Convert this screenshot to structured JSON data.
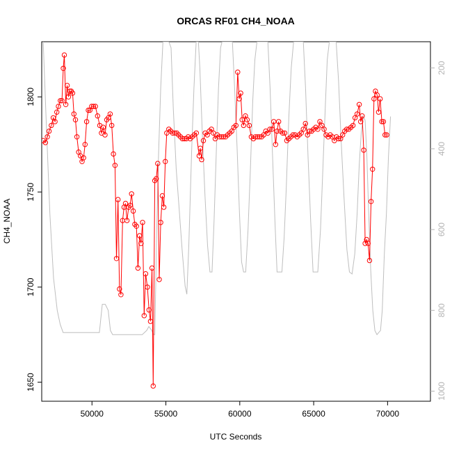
{
  "chart_data": {
    "type": "line",
    "title": "ORCAS RF01 CH4_NOAA",
    "xlabel": "UTC Seconds",
    "ylabel": "CH4_NOAA",
    "xlim": [
      46600,
      72900
    ],
    "ylim": [
      1640,
      1829
    ],
    "x_ticks": [
      50000,
      55000,
      60000,
      65000,
      70000
    ],
    "y_ticks": [
      1650,
      1700,
      1750,
      1800
    ],
    "y2_ticks": [
      200,
      400,
      600,
      800,
      1000
    ],
    "y2_lim": [
      1025,
      135
    ],
    "grid": false,
    "legend": "none",
    "colors": {
      "ch4": "#ff0000",
      "secondary": "#bebebe",
      "axis": "#000000",
      "right_axis": "#b3b3b3"
    },
    "series": [
      {
        "style": "line-points",
        "points": [
          [
            46700,
            1777
          ],
          [
            46850,
            1776
          ],
          [
            46980,
            1779
          ],
          [
            47100,
            1782
          ],
          [
            47250,
            1785
          ],
          [
            47380,
            1789
          ],
          [
            47500,
            1787
          ],
          [
            47620,
            1792
          ],
          [
            47730,
            1795
          ],
          [
            47860,
            1798
          ],
          [
            47970,
            1798
          ],
          [
            48060,
            1815
          ],
          [
            48130,
            1822
          ],
          [
            48230,
            1796
          ],
          [
            48320,
            1806
          ],
          [
            48410,
            1800
          ],
          [
            48500,
            1803
          ],
          [
            48600,
            1803
          ],
          [
            48690,
            1802
          ],
          [
            48780,
            1791
          ],
          [
            48880,
            1788
          ],
          [
            48980,
            1779
          ],
          [
            49100,
            1771
          ],
          [
            49220,
            1769
          ],
          [
            49330,
            1766
          ],
          [
            49430,
            1768
          ],
          [
            49530,
            1775
          ],
          [
            49640,
            1787
          ],
          [
            49750,
            1793
          ],
          [
            49860,
            1793
          ],
          [
            49980,
            1795
          ],
          [
            50100,
            1795
          ],
          [
            50230,
            1795
          ],
          [
            50380,
            1790
          ],
          [
            50530,
            1785
          ],
          [
            50640,
            1781
          ],
          [
            50760,
            1784
          ],
          [
            50880,
            1780
          ],
          [
            51000,
            1788
          ],
          [
            51110,
            1789
          ],
          [
            51230,
            1791
          ],
          [
            51340,
            1785
          ],
          [
            51450,
            1770
          ],
          [
            51560,
            1764
          ],
          [
            51660,
            1715
          ],
          [
            51760,
            1746
          ],
          [
            51860,
            1699
          ],
          [
            51960,
            1696
          ],
          [
            52070,
            1735
          ],
          [
            52170,
            1742
          ],
          [
            52270,
            1744
          ],
          [
            52370,
            1735
          ],
          [
            52480,
            1742
          ],
          [
            52580,
            1743
          ],
          [
            52680,
            1749
          ],
          [
            52790,
            1740
          ],
          [
            52900,
            1733
          ],
          [
            53010,
            1732
          ],
          [
            53110,
            1710
          ],
          [
            53220,
            1727
          ],
          [
            53320,
            1723
          ],
          [
            53420,
            1734
          ],
          [
            53530,
            1685
          ],
          [
            53630,
            1707
          ],
          [
            53750,
            1700
          ],
          [
            53860,
            1688
          ],
          [
            53960,
            1682
          ],
          [
            54060,
            1710
          ],
          [
            54140,
            1648
          ],
          [
            54250,
            1756
          ],
          [
            54350,
            1757
          ],
          [
            54450,
            1765
          ],
          [
            54550,
            1704
          ],
          [
            54650,
            1734
          ],
          [
            54760,
            1748
          ],
          [
            54860,
            1742
          ],
          [
            54960,
            1766
          ],
          [
            55060,
            1781
          ],
          [
            55200,
            1783
          ],
          [
            55330,
            1782
          ],
          [
            55460,
            1781
          ],
          [
            55600,
            1781
          ],
          [
            55730,
            1781
          ],
          [
            55860,
            1780
          ],
          [
            55990,
            1779
          ],
          [
            56120,
            1778
          ],
          [
            56250,
            1778
          ],
          [
            56380,
            1778
          ],
          [
            56510,
            1779
          ],
          [
            56640,
            1778
          ],
          [
            56780,
            1779
          ],
          [
            56920,
            1780
          ],
          [
            57060,
            1781
          ],
          [
            57250,
            1769
          ],
          [
            57330,
            1773
          ],
          [
            57420,
            1767
          ],
          [
            57540,
            1777
          ],
          [
            57660,
            1781
          ],
          [
            57800,
            1780
          ],
          [
            57940,
            1782
          ],
          [
            58080,
            1783
          ],
          [
            58210,
            1781
          ],
          [
            58340,
            1778
          ],
          [
            58480,
            1780
          ],
          [
            58620,
            1779
          ],
          [
            58760,
            1779
          ],
          [
            58900,
            1779
          ],
          [
            59040,
            1779
          ],
          [
            59180,
            1780
          ],
          [
            59320,
            1781
          ],
          [
            59460,
            1782
          ],
          [
            59600,
            1784
          ],
          [
            59740,
            1785
          ],
          [
            59860,
            1813
          ],
          [
            59960,
            1799
          ],
          [
            60060,
            1802
          ],
          [
            60160,
            1788
          ],
          [
            60260,
            1785
          ],
          [
            60380,
            1790
          ],
          [
            60500,
            1788
          ],
          [
            60640,
            1785
          ],
          [
            60780,
            1779
          ],
          [
            60920,
            1778
          ],
          [
            61060,
            1779
          ],
          [
            61200,
            1779
          ],
          [
            61340,
            1779
          ],
          [
            61480,
            1779
          ],
          [
            61620,
            1780
          ],
          [
            61760,
            1782
          ],
          [
            61900,
            1781
          ],
          [
            62040,
            1783
          ],
          [
            62180,
            1783
          ],
          [
            62300,
            1787
          ],
          [
            62420,
            1775
          ],
          [
            62520,
            1782
          ],
          [
            62630,
            1787
          ],
          [
            62760,
            1782
          ],
          [
            62900,
            1781
          ],
          [
            63040,
            1781
          ],
          [
            63180,
            1777
          ],
          [
            63320,
            1778
          ],
          [
            63460,
            1779
          ],
          [
            63600,
            1780
          ],
          [
            63740,
            1780
          ],
          [
            63880,
            1779
          ],
          [
            64020,
            1780
          ],
          [
            64160,
            1781
          ],
          [
            64300,
            1783
          ],
          [
            64440,
            1786
          ],
          [
            64580,
            1780
          ],
          [
            64720,
            1782
          ],
          [
            64860,
            1782
          ],
          [
            65000,
            1783
          ],
          [
            65140,
            1784
          ],
          [
            65280,
            1783
          ],
          [
            65420,
            1787
          ],
          [
            65560,
            1785
          ],
          [
            65700,
            1783
          ],
          [
            65840,
            1780
          ],
          [
            65980,
            1779
          ],
          [
            66120,
            1780
          ],
          [
            66260,
            1779
          ],
          [
            66400,
            1777
          ],
          [
            66540,
            1779
          ],
          [
            66680,
            1778
          ],
          [
            66820,
            1778
          ],
          [
            66960,
            1780
          ],
          [
            67100,
            1782
          ],
          [
            67240,
            1783
          ],
          [
            67380,
            1783
          ],
          [
            67520,
            1784
          ],
          [
            67660,
            1785
          ],
          [
            67800,
            1789
          ],
          [
            67940,
            1791
          ],
          [
            68080,
            1796
          ],
          [
            68180,
            1787
          ],
          [
            68280,
            1790
          ],
          [
            68390,
            1772
          ],
          [
            68480,
            1723
          ],
          [
            68580,
            1725
          ],
          [
            68680,
            1723
          ],
          [
            68780,
            1714
          ],
          [
            68880,
            1745
          ],
          [
            68980,
            1762
          ],
          [
            69080,
            1799
          ],
          [
            69180,
            1803
          ],
          [
            69290,
            1801
          ],
          [
            69390,
            1792
          ],
          [
            69500,
            1799
          ],
          [
            69610,
            1787
          ],
          [
            69720,
            1787
          ],
          [
            69830,
            1780
          ],
          [
            69940,
            1780
          ]
        ]
      },
      {
        "style": "line",
        "points": [
          [
            46700,
            135
          ],
          [
            46900,
            330
          ],
          [
            47150,
            560
          ],
          [
            47400,
            720
          ],
          [
            47650,
            800
          ],
          [
            47850,
            835
          ],
          [
            48050,
            855
          ],
          [
            48450,
            855
          ],
          [
            50300,
            855
          ],
          [
            50500,
            855
          ],
          [
            50700,
            785
          ],
          [
            50900,
            785
          ],
          [
            51100,
            800
          ],
          [
            51250,
            850
          ],
          [
            51400,
            860
          ],
          [
            53400,
            860
          ],
          [
            53550,
            855
          ],
          [
            53700,
            850
          ],
          [
            53850,
            840
          ],
          [
            54050,
            850
          ],
          [
            54150,
            860
          ],
          [
            54250,
            860
          ],
          [
            54380,
            600
          ],
          [
            54500,
            420
          ],
          [
            54650,
            250
          ],
          [
            54800,
            135
          ],
          [
            55200,
            135
          ],
          [
            55350,
            150
          ],
          [
            55500,
            300
          ],
          [
            55700,
            450
          ],
          [
            55900,
            550
          ],
          [
            56100,
            650
          ],
          [
            56300,
            740
          ],
          [
            56420,
            760
          ],
          [
            56550,
            640
          ],
          [
            56750,
            400
          ],
          [
            56900,
            250
          ],
          [
            57050,
            135
          ],
          [
            57200,
            135
          ],
          [
            57300,
            200
          ],
          [
            57480,
            380
          ],
          [
            57650,
            520
          ],
          [
            57820,
            640
          ],
          [
            57980,
            705
          ],
          [
            58120,
            705
          ],
          [
            58260,
            580
          ],
          [
            58420,
            400
          ],
          [
            58560,
            250
          ],
          [
            58700,
            150
          ],
          [
            58800,
            135
          ],
          [
            59500,
            135
          ],
          [
            59650,
            250
          ],
          [
            59820,
            400
          ],
          [
            59980,
            560
          ],
          [
            60120,
            680
          ],
          [
            60260,
            705
          ],
          [
            60400,
            705
          ],
          [
            60560,
            600
          ],
          [
            60720,
            450
          ],
          [
            60880,
            280
          ],
          [
            61020,
            180
          ],
          [
            61160,
            135
          ],
          [
            61900,
            135
          ],
          [
            62050,
            250
          ],
          [
            62220,
            420
          ],
          [
            62380,
            580
          ],
          [
            62520,
            705
          ],
          [
            62660,
            705
          ],
          [
            62850,
            705
          ],
          [
            63000,
            620
          ],
          [
            63140,
            500
          ],
          [
            63320,
            320
          ],
          [
            63480,
            200
          ],
          [
            63640,
            135
          ],
          [
            64300,
            135
          ],
          [
            64450,
            250
          ],
          [
            64620,
            420
          ],
          [
            64800,
            580
          ],
          [
            64960,
            705
          ],
          [
            65100,
            705
          ],
          [
            65280,
            705
          ],
          [
            65460,
            600
          ],
          [
            65620,
            450
          ],
          [
            65780,
            300
          ],
          [
            65920,
            180
          ],
          [
            66060,
            135
          ],
          [
            66520,
            135
          ],
          [
            66680,
            230
          ],
          [
            66860,
            380
          ],
          [
            67050,
            520
          ],
          [
            67250,
            650
          ],
          [
            67420,
            705
          ],
          [
            67600,
            710
          ],
          [
            67780,
            660
          ],
          [
            67940,
            560
          ],
          [
            68080,
            440
          ],
          [
            68220,
            360
          ],
          [
            68360,
            320
          ],
          [
            68480,
            330
          ],
          [
            68600,
            420
          ],
          [
            68720,
            560
          ],
          [
            68860,
            700
          ],
          [
            69000,
            800
          ],
          [
            69140,
            850
          ],
          [
            69280,
            860
          ],
          [
            69400,
            855
          ],
          [
            69520,
            850
          ],
          [
            69640,
            800
          ],
          [
            69780,
            660
          ],
          [
            69920,
            560
          ],
          [
            70060,
            420
          ],
          [
            70200,
            320
          ]
        ]
      }
    ]
  }
}
